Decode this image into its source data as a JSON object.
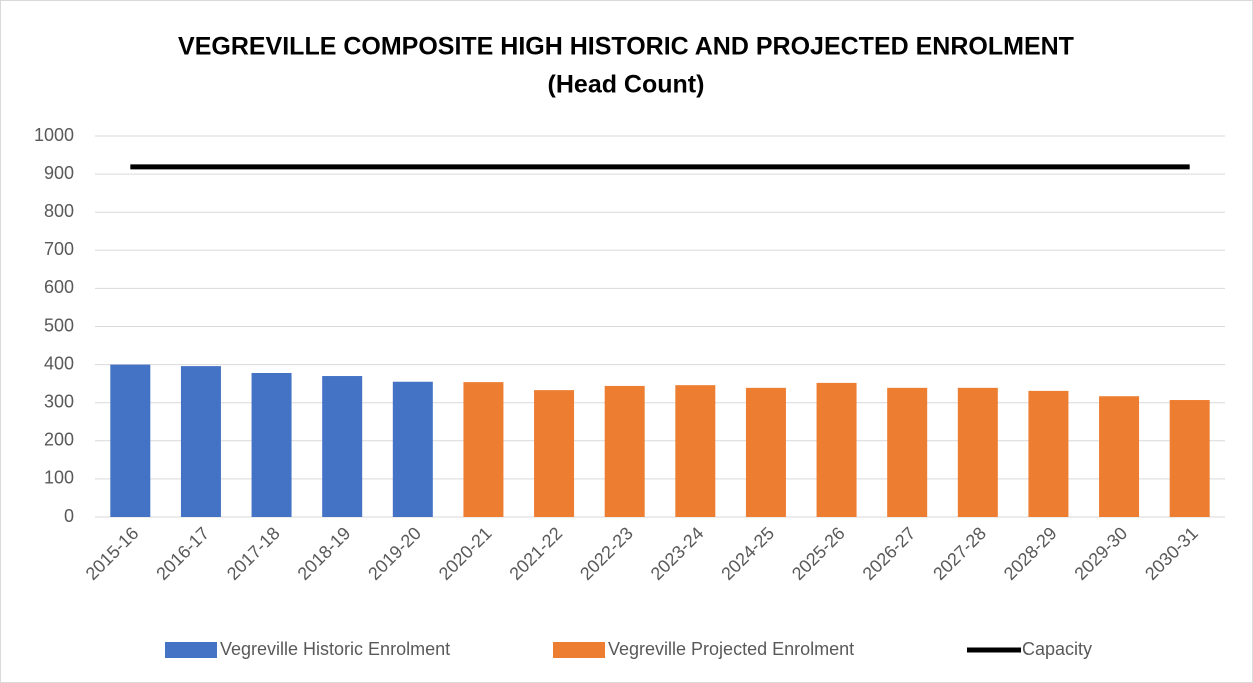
{
  "chart_data": {
    "type": "bar",
    "title": "VEGREVILLE COMPOSITE HIGH HISTORIC AND PROJECTED ENROLMENT",
    "subtitle": "(Head Count)",
    "categories": [
      "2015-16",
      "2016-17",
      "2017-18",
      "2018-19",
      "2019-20",
      "2020-21",
      "2021-22",
      "2022-23",
      "2023-24",
      "2024-25",
      "2025-26",
      "2026-27",
      "2027-28",
      "2028-29",
      "2029-30",
      "2030-31"
    ],
    "series": [
      {
        "name": "Vegreville Historic Enrolment",
        "color": "#4472c4",
        "type": "bar",
        "values": [
          400,
          396,
          378,
          370,
          355,
          null,
          null,
          null,
          null,
          null,
          null,
          null,
          null,
          null,
          null,
          null
        ]
      },
      {
        "name": "Vegreville Projected Enrolment",
        "color": "#ed7d31",
        "type": "bar",
        "values": [
          null,
          null,
          null,
          null,
          null,
          354,
          333,
          344,
          346,
          339,
          352,
          339,
          339,
          331,
          317,
          307
        ]
      },
      {
        "name": "Capacity",
        "color": "#000000",
        "type": "line",
        "values": [
          919,
          919,
          919,
          919,
          919,
          919,
          919,
          919,
          919,
          919,
          919,
          919,
          919,
          919,
          919,
          919
        ]
      }
    ],
    "ylim": [
      0,
      1000
    ],
    "yticks": [
      0,
      100,
      200,
      300,
      400,
      500,
      600,
      700,
      800,
      900,
      1000
    ],
    "grid": true,
    "legend": "bottom"
  }
}
